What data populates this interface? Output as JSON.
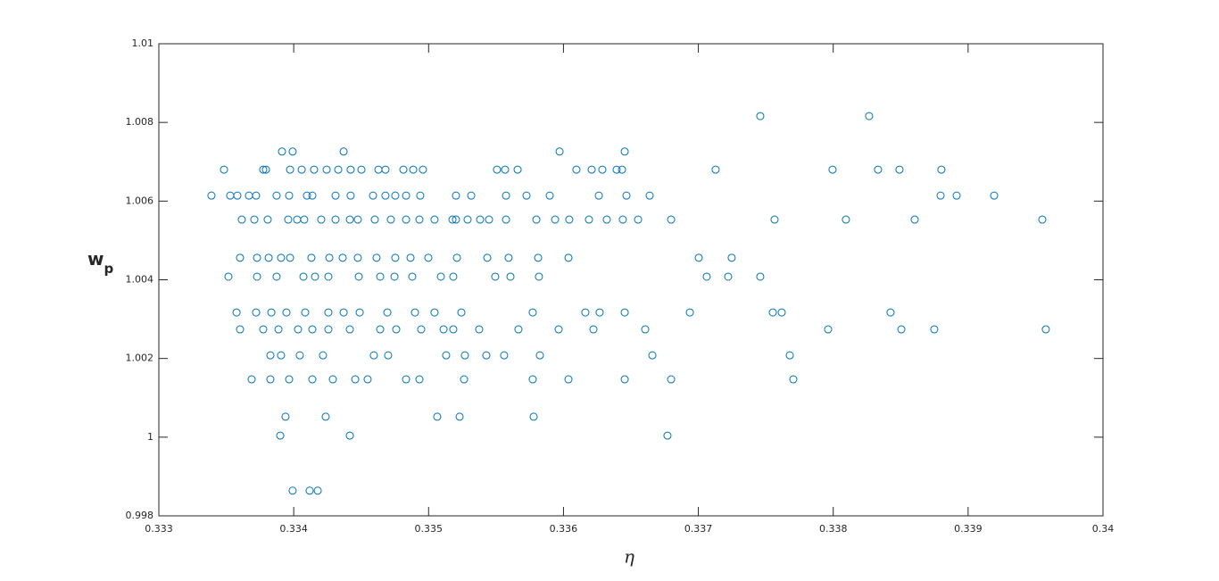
{
  "chart_data": {
    "type": "scatter",
    "color": "#0072bd",
    "xlabel": "η",
    "ylabel": "w",
    "ylabel_subscript": "p",
    "xlim": [
      0.333,
      0.34
    ],
    "xticks": [
      0.333,
      0.334,
      0.335,
      0.336,
      0.337,
      0.338,
      0.339,
      0.34
    ],
    "ylim": [
      0.998,
      1.01
    ],
    "yticks": [
      0.998,
      1,
      1.002,
      1.004,
      1.006,
      1.008,
      1.01
    ],
    "x": [
      0.337459,
      0.338266,
      0.333913,
      0.333992,
      0.33437,
      0.335971,
      0.336454,
      0.333483,
      0.333774,
      0.333794,
      0.333973,
      0.334059,
      0.334151,
      0.334244,
      0.33433,
      0.334422,
      0.334502,
      0.334628,
      0.33468,
      0.334813,
      0.334886,
      0.334958,
      0.335507,
      0.335567,
      0.33566,
      0.336096,
      0.336209,
      0.336288,
      0.336394,
      0.336434,
      0.337128,
      0.337995,
      0.338332,
      0.338491,
      0.338802,
      0.33339,
      0.333529,
      0.333582,
      0.333668,
      0.333721,
      0.333873,
      0.333966,
      0.334098,
      0.334138,
      0.33431,
      0.334422,
      0.334588,
      0.33468,
      0.334753,
      0.334833,
      0.334938,
      0.335203,
      0.335316,
      0.335574,
      0.335726,
      0.335898,
      0.336262,
      0.336467,
      0.336639,
      0.338796,
      0.338915,
      0.339193,
      0.333615,
      0.333708,
      0.333807,
      0.333959,
      0.334025,
      0.334078,
      0.334204,
      0.33431,
      0.334416,
      0.334475,
      0.334601,
      0.33472,
      0.334833,
      0.334932,
      0.335044,
      0.335177,
      0.335203,
      0.335289,
      0.335382,
      0.335448,
      0.335574,
      0.335799,
      0.335938,
      0.336043,
      0.336189,
      0.336321,
      0.33644,
      0.336553,
      0.336798,
      0.337565,
      0.338094,
      0.338604,
      0.33955,
      0.333602,
      0.333728,
      0.333814,
      0.333906,
      0.333973,
      0.334131,
      0.334264,
      0.334363,
      0.334475,
      0.334614,
      0.334753,
      0.334866,
      0.334998,
      0.33521,
      0.335435,
      0.335593,
      0.335812,
      0.336037,
      0.337003,
      0.337247,
      0.333516,
      0.333728,
      0.333873,
      0.334072,
      0.334158,
      0.334257,
      0.334482,
      0.334641,
      0.334747,
      0.334879,
      0.335091,
      0.335183,
      0.335494,
      0.335607,
      0.335818,
      0.337062,
      0.337221,
      0.337459,
      0.333576,
      0.333721,
      0.333834,
      0.333946,
      0.334085,
      0.334257,
      0.33437,
      0.334489,
      0.334694,
      0.334899,
      0.335044,
      0.335243,
      0.335772,
      0.336162,
      0.336268,
      0.336454,
      0.336937,
      0.337552,
      0.337618,
      0.338425,
      0.333602,
      0.333774,
      0.333887,
      0.334032,
      0.334138,
      0.334257,
      0.334416,
      0.334641,
      0.33476,
      0.334945,
      0.335111,
      0.335183,
      0.335375,
      0.335666,
      0.335964,
      0.336222,
      0.336606,
      0.337962,
      0.338505,
      0.338749,
      0.339576,
      0.333827,
      0.333906,
      0.334045,
      0.334217,
      0.334594,
      0.3347,
      0.33513,
      0.335269,
      0.335428,
      0.33556,
      0.335825,
      0.336659,
      0.337678,
      0.333688,
      0.333827,
      0.333966,
      0.334138,
      0.33429,
      0.334456,
      0.334548,
      0.334833,
      0.334932,
      0.335263,
      0.335772,
      0.336037,
      0.336454,
      0.336798,
      0.337704,
      0.333939,
      0.334237,
      0.335064,
      0.33523,
      0.335779,
      0.3339,
      0.334416,
      0.336771,
      0.333992,
      0.334118,
      0.334178
    ],
    "values": [
      1.00816,
      1.00816,
      1.00726,
      1.00726,
      1.00726,
      1.00726,
      1.00726,
      1.0068,
      1.0068,
      1.0068,
      1.0068,
      1.0068,
      1.0068,
      1.0068,
      1.0068,
      1.0068,
      1.0068,
      1.0068,
      1.0068,
      1.0068,
      1.0068,
      1.0068,
      1.0068,
      1.0068,
      1.0068,
      1.0068,
      1.0068,
      1.0068,
      1.0068,
      1.0068,
      1.0068,
      1.0068,
      1.0068,
      1.0068,
      1.0068,
      1.00614,
      1.00614,
      1.00614,
      1.00614,
      1.00614,
      1.00614,
      1.00614,
      1.00614,
      1.00614,
      1.00614,
      1.00614,
      1.00614,
      1.00614,
      1.00614,
      1.00614,
      1.00614,
      1.00614,
      1.00614,
      1.00614,
      1.00614,
      1.00614,
      1.00614,
      1.00614,
      1.00614,
      1.00614,
      1.00614,
      1.00614,
      1.00553,
      1.00553,
      1.00553,
      1.00553,
      1.00553,
      1.00553,
      1.00553,
      1.00553,
      1.00553,
      1.00553,
      1.00553,
      1.00553,
      1.00553,
      1.00553,
      1.00553,
      1.00553,
      1.00553,
      1.00553,
      1.00553,
      1.00553,
      1.00553,
      1.00553,
      1.00553,
      1.00553,
      1.00553,
      1.00553,
      1.00553,
      1.00553,
      1.00553,
      1.00553,
      1.00553,
      1.00553,
      1.00553,
      1.00456,
      1.00456,
      1.00456,
      1.00456,
      1.00456,
      1.00456,
      1.00456,
      1.00456,
      1.00456,
      1.00456,
      1.00456,
      1.00456,
      1.00456,
      1.00456,
      1.00456,
      1.00456,
      1.00456,
      1.00456,
      1.00456,
      1.00456,
      1.00408,
      1.00408,
      1.00408,
      1.00408,
      1.00408,
      1.00408,
      1.00408,
      1.00408,
      1.00408,
      1.00408,
      1.00408,
      1.00408,
      1.00408,
      1.00408,
      1.00408,
      1.00408,
      1.00408,
      1.00408,
      1.00317,
      1.00317,
      1.00317,
      1.00317,
      1.00317,
      1.00317,
      1.00317,
      1.00317,
      1.00317,
      1.00317,
      1.00317,
      1.00317,
      1.00317,
      1.00317,
      1.00317,
      1.00317,
      1.00317,
      1.00317,
      1.00317,
      1.00317,
      1.00274,
      1.00274,
      1.00274,
      1.00274,
      1.00274,
      1.00274,
      1.00274,
      1.00274,
      1.00274,
      1.00274,
      1.00274,
      1.00274,
      1.00274,
      1.00274,
      1.00274,
      1.00274,
      1.00274,
      1.00274,
      1.00274,
      1.00274,
      1.00274,
      1.00208,
      1.00208,
      1.00208,
      1.00208,
      1.00208,
      1.00208,
      1.00208,
      1.00208,
      1.00208,
      1.00208,
      1.00208,
      1.00208,
      1.00208,
      1.00147,
      1.00147,
      1.00147,
      1.00147,
      1.00147,
      1.00147,
      1.00147,
      1.00147,
      1.00147,
      1.00147,
      1.00147,
      1.00147,
      1.00147,
      1.00147,
      1.00147,
      1.00052,
      1.00052,
      1.00052,
      1.00052,
      1.00052,
      1.00004,
      1.00004,
      1.00004,
      0.99864,
      0.99864,
      0.99864
    ]
  }
}
